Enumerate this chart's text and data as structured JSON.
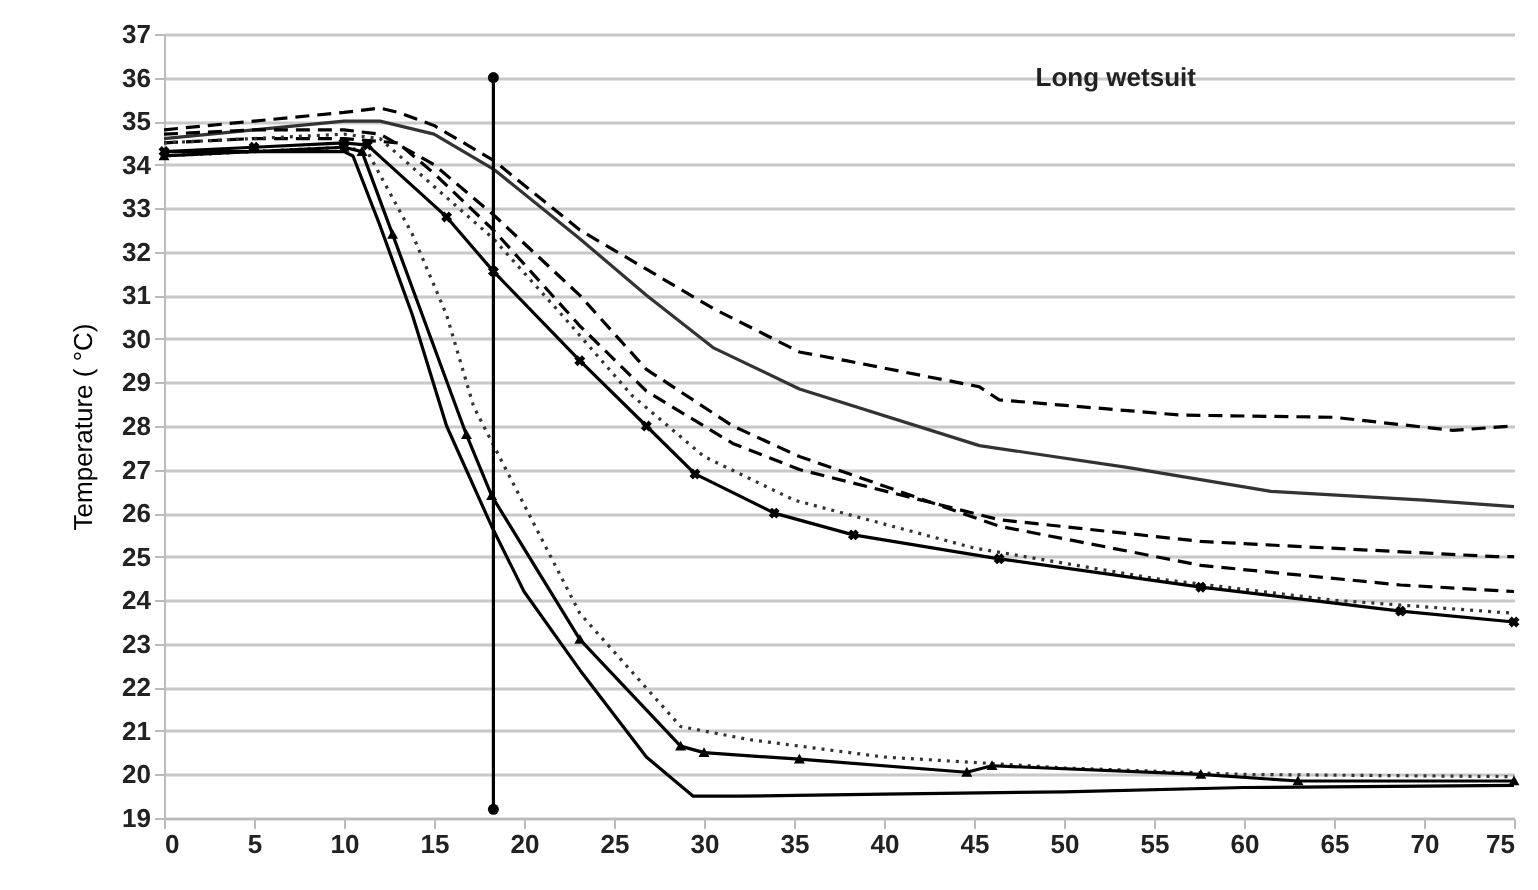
{
  "chart_data": {
    "type": "line",
    "ylabel": "Temperature ( °C)",
    "annotations": [
      "Long wetsuit"
    ],
    "xlim": [
      0,
      75
    ],
    "xticks": [
      0,
      5,
      10,
      15,
      20,
      25,
      30,
      35,
      40,
      45,
      50,
      55,
      60,
      65,
      70,
      75
    ],
    "ylim": [
      19,
      37
    ],
    "yticks": [
      19,
      20,
      21,
      22,
      23,
      24,
      25,
      26,
      27,
      28,
      29,
      30,
      31,
      32,
      33,
      34,
      35,
      36,
      37
    ],
    "grid": "y",
    "series": [
      {
        "color": "#000000",
        "line_style": "dashed",
        "x": [
          0,
          5,
          10,
          12,
          13,
          15,
          18.3,
          23.1,
          26.8,
          30.5,
          35.3,
          37.9,
          45.3,
          46.4,
          56.5,
          65,
          71.6,
          75
        ],
        "values": [
          34.8,
          35.0,
          35.2,
          35.3,
          35.2,
          34.9,
          34.1,
          32.5,
          31.6,
          30.7,
          29.7,
          29.5,
          28.9,
          28.6,
          28.25,
          28.2,
          27.9,
          28.0
        ]
      },
      {
        "color": "#333333",
        "line_style": "solid",
        "x": [
          0,
          5,
          10,
          12,
          15,
          18.3,
          23.1,
          26.8,
          30.5,
          35.3,
          45.3,
          53.5,
          61.5,
          70,
          75
        ],
        "values": [
          34.6,
          34.8,
          35.0,
          35.0,
          34.7,
          33.9,
          32.3,
          31.0,
          29.8,
          28.85,
          27.55,
          27.05,
          26.5,
          26.3,
          26.15
        ]
      },
      {
        "color": "#000000",
        "line_style": "dashed",
        "x": [
          0,
          5,
          10,
          12,
          15,
          18.3,
          23.1,
          26.8,
          31.6,
          35.3,
          46.4,
          57.6,
          68.7,
          75
        ],
        "values": [
          34.7,
          34.8,
          34.8,
          34.7,
          34.0,
          32.85,
          31.0,
          29.3,
          28.0,
          27.3,
          25.7,
          24.8,
          24.35,
          24.2
        ]
      },
      {
        "color": "#000000",
        "line_style": "dashed",
        "x": [
          0,
          5,
          10,
          13,
          15,
          18.3,
          23.1,
          26.8,
          31.6,
          35.3,
          46.4,
          57.6,
          74,
          75
        ],
        "values": [
          34.5,
          34.6,
          34.6,
          34.5,
          33.8,
          32.5,
          30.3,
          28.8,
          27.6,
          27.0,
          25.85,
          25.35,
          25.0,
          25.0
        ]
      },
      {
        "color": "#333333",
        "line_style": "dotted",
        "x": [
          0,
          10,
          12,
          15,
          18.3,
          22,
          26,
          30,
          35,
          45,
          55,
          65,
          75
        ],
        "values": [
          34.5,
          34.7,
          34.6,
          33.5,
          32.3,
          30.6,
          28.7,
          27.3,
          26.3,
          25.2,
          24.5,
          24.0,
          23.7
        ]
      },
      {
        "color": "#000000",
        "line_style": "solid",
        "marker": "cross",
        "x": [
          0,
          5,
          10,
          11.3,
          15.7,
          18.3,
          23.1,
          26.8,
          29.5,
          33.9,
          38.3,
          46.4,
          57.6,
          68.7,
          75
        ],
        "values": [
          34.3,
          34.4,
          34.5,
          34.45,
          32.8,
          31.55,
          29.5,
          28.0,
          26.9,
          26.0,
          25.5,
          24.95,
          24.3,
          23.75,
          23.5
        ]
      },
      {
        "color": "#333333",
        "line_style": "dotted",
        "x": [
          0,
          5,
          10,
          11.3,
          13.8,
          15.7,
          17.2,
          23.1,
          28.7,
          32.5,
          40,
          50,
          60,
          75
        ],
        "values": [
          34.2,
          34.3,
          34.4,
          34.3,
          32.4,
          30.55,
          28.45,
          23.7,
          21.1,
          20.8,
          20.4,
          20.15,
          20.0,
          19.95
        ]
      },
      {
        "color": "#000000",
        "line_style": "solid",
        "x": [
          0,
          5,
          10,
          10.5,
          12,
          13.8,
          15.7,
          18.2,
          20,
          23.1,
          26.8,
          29.4,
          32,
          40,
          50,
          60,
          75
        ],
        "values": [
          34.3,
          34.3,
          34.3,
          34.2,
          32.6,
          30.55,
          28.0,
          25.7,
          24.2,
          22.4,
          20.4,
          19.5,
          19.5,
          19.55,
          19.6,
          19.7,
          19.75
        ]
      },
      {
        "color": "#000000",
        "line_style": "solid",
        "marker": "triangle",
        "x": [
          0,
          10,
          11,
          12.7,
          16.8,
          18.2,
          23.1,
          28.7,
          30,
          35.3,
          44.6,
          46,
          57.6,
          63,
          75
        ],
        "values": [
          34.2,
          34.4,
          34.3,
          32.4,
          27.8,
          26.4,
          23.1,
          20.65,
          20.5,
          20.35,
          20.05,
          20.2,
          20.0,
          19.85,
          19.85
        ]
      },
      {
        "color": "#000000",
        "line_style": "solid",
        "marker": "circle",
        "x": [
          18.3,
          18.3
        ],
        "values": [
          19.2,
          36
        ]
      }
    ]
  }
}
